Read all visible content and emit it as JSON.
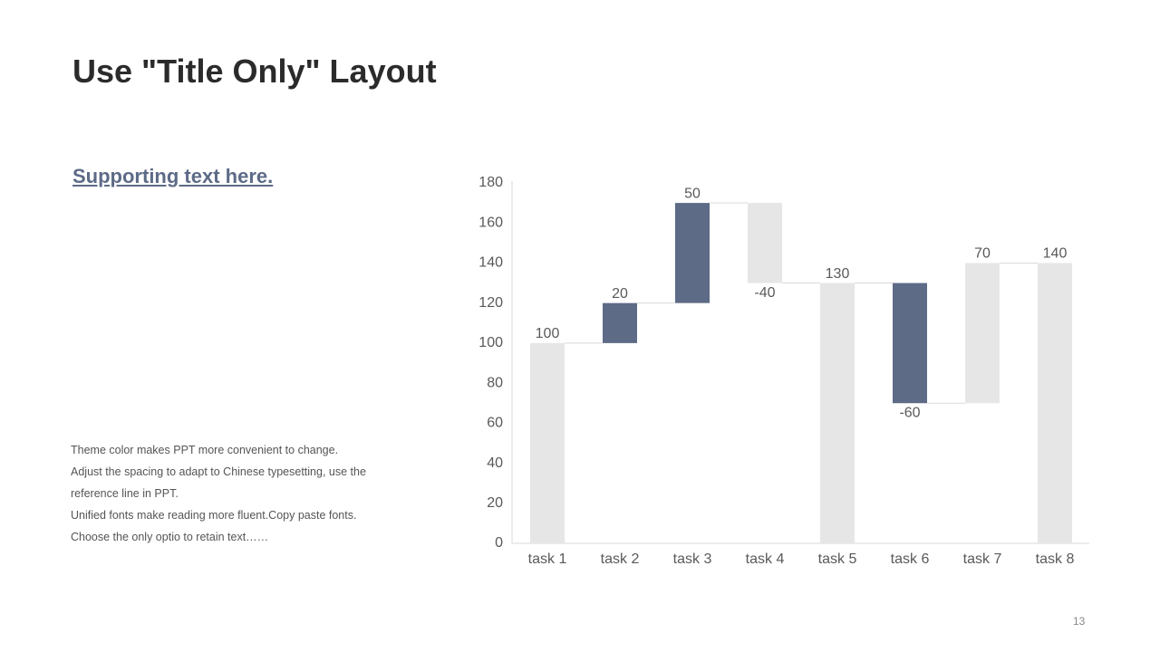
{
  "header": {
    "title": "Use \"Title Only\" Layout"
  },
  "supporting_text": "Supporting text here.",
  "body_lines": [
    "Theme  color makes PPT more convenient  to change.",
    "Adjust the spacing to adapt to Chinese typesetting, use the",
    "reference line in PPT.",
    "Unified  fonts make reading more fluent.Copy paste fonts.",
    "Choose the only optio to retain text……"
  ],
  "page_number": "13",
  "chart_data": {
    "type": "waterfall",
    "categories": [
      "task 1",
      "task 2",
      "task 3",
      "task 4",
      "task 5",
      "task 6",
      "task 7",
      "task 8"
    ],
    "values": [
      100,
      20,
      50,
      -40,
      130,
      -60,
      70,
      140
    ],
    "totals": [
      true,
      false,
      false,
      false,
      true,
      false,
      false,
      true
    ],
    "colors": [
      "#e6e6e6",
      "#5d6b87",
      "#5d6b87",
      "#e6e6e6",
      "#e6e6e6",
      "#5d6b87",
      "#e6e6e6",
      "#e6e6e6"
    ],
    "ylim": [
      0,
      180
    ],
    "yticks": [
      0,
      20,
      40,
      60,
      80,
      100,
      120,
      140,
      160,
      180
    ],
    "grid": false
  }
}
